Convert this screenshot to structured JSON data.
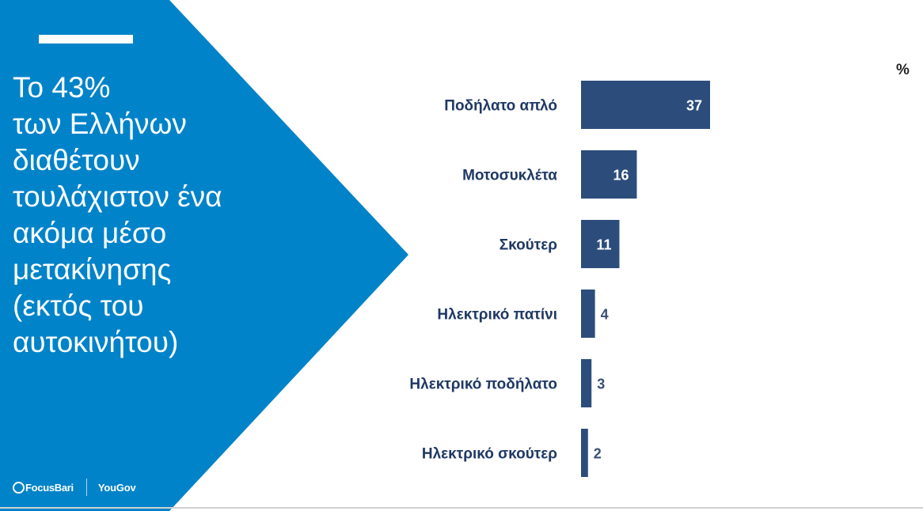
{
  "slide": {
    "headline_lines": [
      "Το 43%",
      "των Ελλήνων",
      "διαθέτουν",
      "τουλάχιστον ένα",
      "ακόμα μέσο",
      "μετακίνησης",
      "(εκτός του",
      "αυτοκινήτου)"
    ],
    "unit": "%"
  },
  "logos": {
    "focus": "FocusBari",
    "yougov": "YouGov"
  },
  "colors": {
    "panel": "#0083c9",
    "bar": "#2c4d7c",
    "label": "#1f3864",
    "value_inside": "#ffffff",
    "value_outside": "#3a4f73"
  },
  "chart_data": {
    "type": "bar",
    "orientation": "horizontal",
    "categories": [
      "Ποδήλατο απλό",
      "Μοτοσυκλέτα",
      "Σκούτερ",
      "Ηλεκτρικό πατίνι",
      "Ηλεκτρικό ποδήλατο",
      "Ηλεκτρικό σκούτερ"
    ],
    "values": [
      37,
      16,
      11,
      4,
      3,
      2
    ],
    "title": "",
    "xlabel": "",
    "ylabel": "",
    "unit": "%",
    "data_labels": true,
    "grid": false,
    "legend": false
  }
}
